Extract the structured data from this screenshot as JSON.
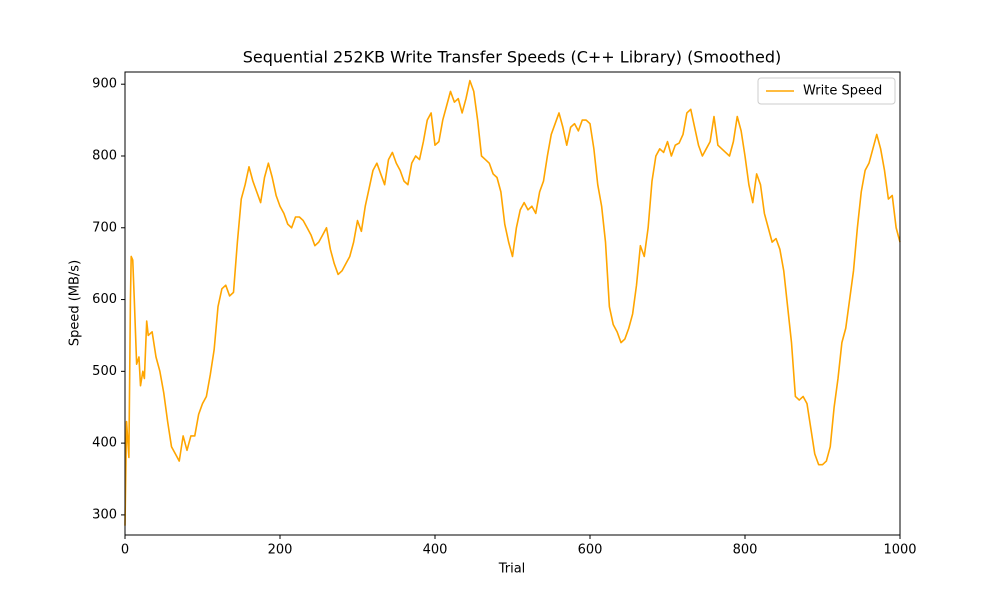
{
  "chart_data": {
    "type": "line",
    "title": "Sequential 252KB Write Transfer Speeds (C++ Library) (Smoothed)",
    "x_label": "Trial",
    "y_label": "Speed (MB/s)",
    "x": [
      0,
      2,
      5,
      7,
      8,
      10,
      12,
      15,
      18,
      20,
      23,
      25,
      28,
      30,
      35,
      40,
      45,
      50,
      55,
      60,
      65,
      70,
      75,
      80,
      85,
      90,
      95,
      100,
      105,
      110,
      115,
      120,
      125,
      130,
      135,
      140,
      145,
      150,
      155,
      160,
      165,
      170,
      175,
      180,
      185,
      190,
      195,
      200,
      205,
      210,
      215,
      220,
      225,
      230,
      235,
      240,
      245,
      250,
      255,
      260,
      265,
      270,
      275,
      280,
      285,
      290,
      295,
      300,
      305,
      310,
      315,
      320,
      325,
      330,
      335,
      340,
      345,
      350,
      355,
      360,
      365,
      370,
      375,
      380,
      385,
      390,
      395,
      400,
      405,
      410,
      415,
      420,
      425,
      430,
      435,
      440,
      445,
      450,
      455,
      460,
      465,
      470,
      475,
      480,
      485,
      490,
      495,
      500,
      505,
      510,
      515,
      520,
      525,
      530,
      535,
      540,
      545,
      550,
      555,
      560,
      565,
      570,
      575,
      580,
      585,
      590,
      595,
      600,
      605,
      610,
      615,
      620,
      625,
      630,
      635,
      640,
      645,
      650,
      655,
      660,
      665,
      670,
      675,
      680,
      685,
      690,
      695,
      700,
      705,
      710,
      715,
      720,
      725,
      730,
      735,
      740,
      745,
      750,
      755,
      760,
      765,
      770,
      775,
      780,
      785,
      790,
      795,
      800,
      805,
      810,
      815,
      820,
      825,
      830,
      835,
      840,
      845,
      850,
      855,
      860,
      865,
      870,
      875,
      880,
      885,
      890,
      895,
      900,
      905,
      910,
      915,
      920,
      925,
      930,
      935,
      940,
      945,
      950,
      955,
      960,
      965,
      970,
      975,
      980,
      985,
      990,
      995,
      1000
    ],
    "series": [
      {
        "name": "Write Speed",
        "color": "#ffa500",
        "values": [
          285,
          430,
          380,
          600,
          660,
          655,
          600,
          510,
          520,
          480,
          500,
          490,
          570,
          550,
          555,
          520,
          500,
          470,
          430,
          395,
          385,
          375,
          410,
          390,
          410,
          410,
          440,
          455,
          465,
          495,
          530,
          590,
          615,
          620,
          605,
          610,
          680,
          740,
          760,
          785,
          765,
          750,
          735,
          770,
          790,
          770,
          745,
          730,
          720,
          705,
          700,
          715,
          715,
          710,
          700,
          690,
          675,
          680,
          690,
          700,
          670,
          650,
          635,
          640,
          650,
          660,
          680,
          710,
          695,
          730,
          755,
          780,
          790,
          775,
          760,
          795,
          805,
          790,
          780,
          765,
          760,
          790,
          800,
          795,
          820,
          850,
          860,
          815,
          820,
          850,
          870,
          890,
          875,
          880,
          860,
          880,
          905,
          890,
          850,
          800,
          795,
          790,
          775,
          770,
          750,
          705,
          680,
          660,
          700,
          725,
          735,
          725,
          730,
          720,
          750,
          765,
          800,
          830,
          845,
          860,
          840,
          815,
          840,
          845,
          835,
          850,
          850,
          845,
          810,
          760,
          730,
          680,
          590,
          565,
          555,
          540,
          545,
          560,
          580,
          620,
          675,
          660,
          700,
          765,
          800,
          810,
          805,
          820,
          800,
          815,
          818,
          830,
          860,
          865,
          840,
          815,
          800,
          810,
          820,
          855,
          815,
          810,
          805,
          800,
          820,
          855,
          835,
          800,
          760,
          735,
          775,
          760,
          720,
          700,
          680,
          685,
          670,
          640,
          590,
          540,
          465,
          460,
          465,
          455,
          420,
          385,
          370,
          370,
          375,
          395,
          450,
          490,
          540,
          560,
          600,
          640,
          700,
          750,
          780,
          790,
          810,
          830,
          810,
          780,
          740,
          745,
          700,
          680
        ]
      }
    ],
    "xlim": [
      0,
      1000
    ],
    "ylim": [
      272,
      917
    ],
    "xticks": [
      0,
      200,
      400,
      600,
      800,
      1000
    ],
    "yticks": [
      300,
      400,
      500,
      600,
      700,
      800,
      900
    ],
    "legend": "upper right"
  }
}
